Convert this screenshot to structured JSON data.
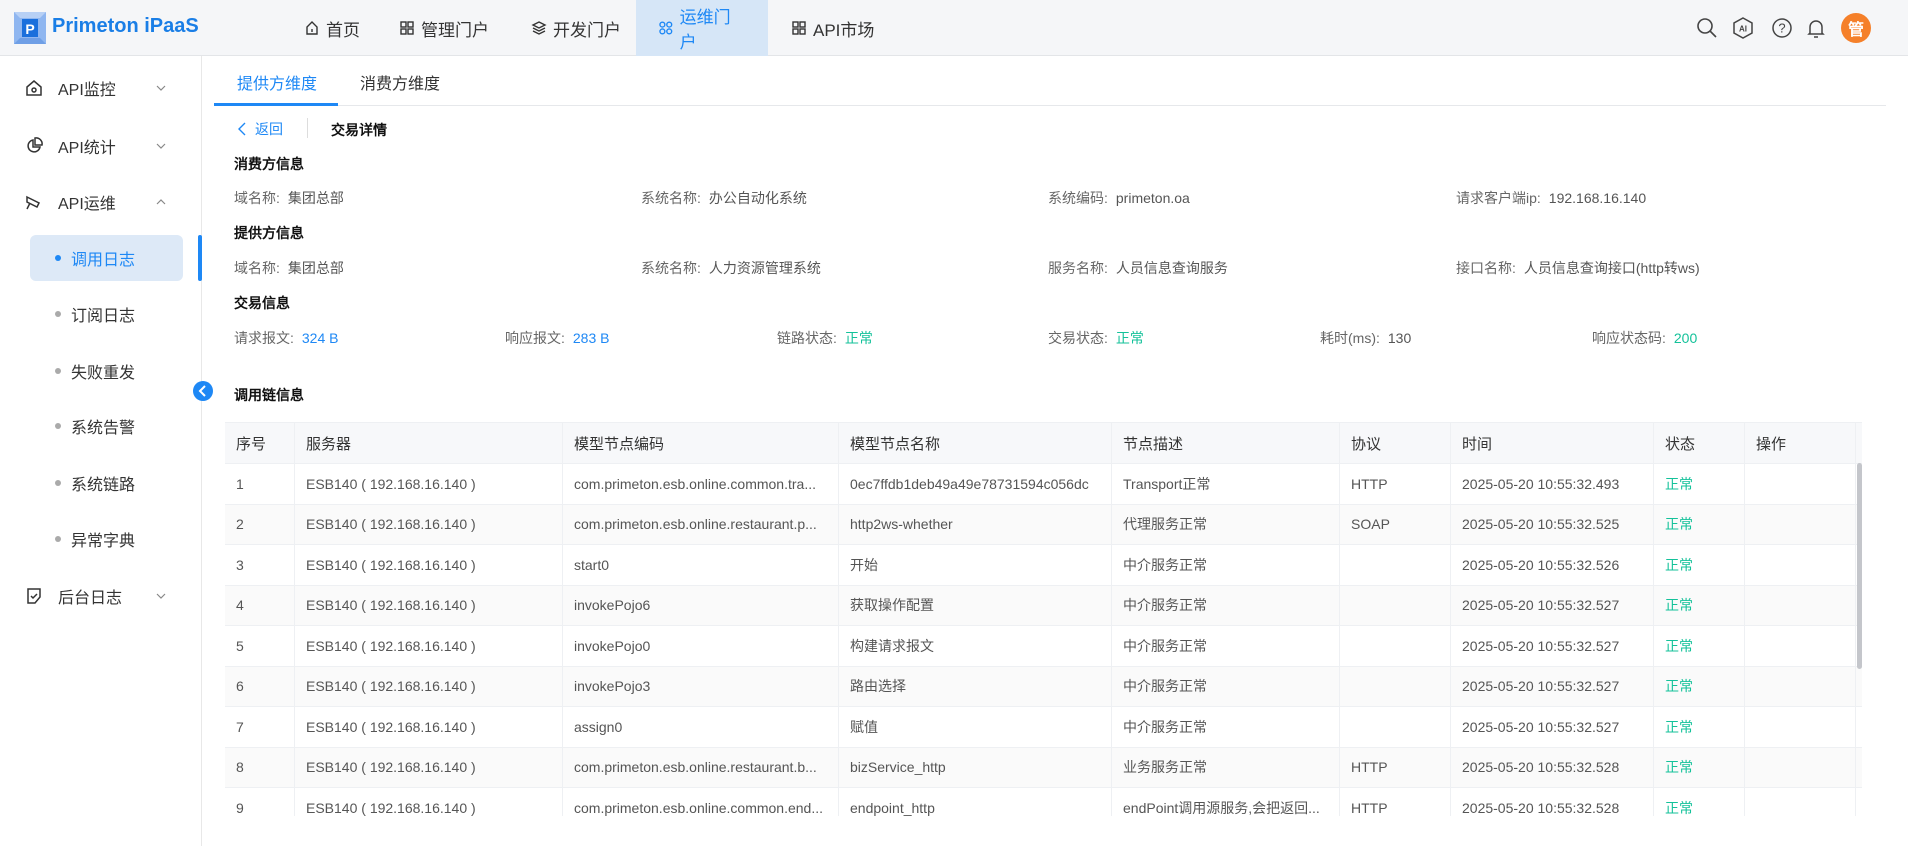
{
  "app": {
    "logo_text": "Primeton iPaaS"
  },
  "nav": [
    {
      "label": "首页",
      "icon": "home-icon"
    },
    {
      "label": "管理门户",
      "icon": "grid-icon"
    },
    {
      "label": "开发门户",
      "icon": "layers-icon"
    },
    {
      "label": "运维门户",
      "icon": "grid-icon",
      "active": true
    },
    {
      "label": "API市场",
      "icon": "grid-icon"
    }
  ],
  "toolbar": {
    "icons": [
      "search-icon",
      "ai-icon",
      "help-icon",
      "bell-icon"
    ],
    "avatar_text": "管",
    "avatar_color": "#f5802a"
  },
  "sidebar": {
    "groups": [
      {
        "label": "API监控",
        "icon": "home-icon"
      },
      {
        "label": "API统计",
        "icon": "pie-chart-icon"
      },
      {
        "label": "API运维",
        "icon": "tools-icon",
        "expanded": true
      },
      {
        "label": "后台日志",
        "icon": "log-icon"
      }
    ],
    "sub_items": [
      {
        "label": "调用日志",
        "active": true
      },
      {
        "label": "订阅日志"
      },
      {
        "label": "失败重发"
      },
      {
        "label": "系统告警"
      },
      {
        "label": "系统链路"
      },
      {
        "label": "异常字典"
      }
    ]
  },
  "tabs": [
    {
      "label": "提供方维度",
      "active": true
    },
    {
      "label": "消费方维度"
    }
  ],
  "breadcrumb": {
    "back": "返回",
    "title": "交易详情"
  },
  "consumer": {
    "title": "消费方信息",
    "fields": [
      {
        "k": "域名称:",
        "v": "集团总部"
      },
      {
        "k": "系统名称:",
        "v": "办公自动化系统"
      },
      {
        "k": "系统编码:",
        "v": "primeton.oa"
      },
      {
        "k": "请求客户端ip:",
        "v": "192.168.16.140"
      }
    ]
  },
  "provider": {
    "title": "提供方信息",
    "fields": [
      {
        "k": "域名称:",
        "v": "集团总部"
      },
      {
        "k": "系统名称:",
        "v": "人力资源管理系统"
      },
      {
        "k": "服务名称:",
        "v": "人员信息查询服务"
      },
      {
        "k": "接口名称:",
        "v": "人员信息查询接口(http转ws)"
      }
    ]
  },
  "transaction": {
    "title": "交易信息",
    "fields": [
      {
        "k": "请求报文:",
        "v": "324 B",
        "style": "blue"
      },
      {
        "k": "响应报文:",
        "v": "283 B",
        "style": "blue"
      },
      {
        "k": "链路状态:",
        "v": "正常",
        "style": "green"
      },
      {
        "k": "交易状态:",
        "v": "正常",
        "style": "green"
      },
      {
        "k": "耗时(ms):",
        "v": "130",
        "style": ""
      },
      {
        "k": "响应状态码:",
        "v": "200",
        "style": "green"
      }
    ]
  },
  "chain": {
    "title": "调用链信息",
    "columns": [
      "序号",
      "服务器",
      "模型节点编码",
      "模型节点名称",
      "节点描述",
      "协议",
      "时间",
      "状态",
      "操作"
    ],
    "rows": [
      [
        "1",
        "ESB140 ( 192.168.16.140 )",
        "com.primeton.esb.online.common.tra...",
        "0ec7ffdb1deb49a49e78731594c056dc",
        "Transport正常",
        "HTTP",
        "2025-05-20 10:55:32.493",
        "正常",
        ""
      ],
      [
        "2",
        "ESB140 ( 192.168.16.140 )",
        "com.primeton.esb.online.restaurant.p...",
        "http2ws-whether",
        "代理服务正常",
        "SOAP",
        "2025-05-20 10:55:32.525",
        "正常",
        ""
      ],
      [
        "3",
        "ESB140 ( 192.168.16.140 )",
        "start0",
        "开始",
        "中介服务正常",
        "",
        "2025-05-20 10:55:32.526",
        "正常",
        ""
      ],
      [
        "4",
        "ESB140 ( 192.168.16.140 )",
        "invokePojo6",
        "获取操作配置",
        "中介服务正常",
        "",
        "2025-05-20 10:55:32.527",
        "正常",
        ""
      ],
      [
        "5",
        "ESB140 ( 192.168.16.140 )",
        "invokePojo0",
        "构建请求报文",
        "中介服务正常",
        "",
        "2025-05-20 10:55:32.527",
        "正常",
        ""
      ],
      [
        "6",
        "ESB140 ( 192.168.16.140 )",
        "invokePojo3",
        "路由选择",
        "中介服务正常",
        "",
        "2025-05-20 10:55:32.527",
        "正常",
        ""
      ],
      [
        "7",
        "ESB140 ( 192.168.16.140 )",
        "assign0",
        "赋值",
        "中介服务正常",
        "",
        "2025-05-20 10:55:32.527",
        "正常",
        ""
      ],
      [
        "8",
        "ESB140 ( 192.168.16.140 )",
        "com.primeton.esb.online.restaurant.b...",
        "bizService_http",
        "业务服务正常",
        "HTTP",
        "2025-05-20 10:55:32.528",
        "正常",
        ""
      ],
      [
        "9",
        "ESB140 ( 192.168.16.140 )",
        "com.primeton.esb.online.common.end...",
        "endpoint_http",
        "endPoint调用源服务,会把返回...",
        "HTTP",
        "2025-05-20 10:55:32.528",
        "正常",
        ""
      ]
    ]
  },
  "colors": {
    "accent": "#1e88f5",
    "success": "#14c29a"
  }
}
